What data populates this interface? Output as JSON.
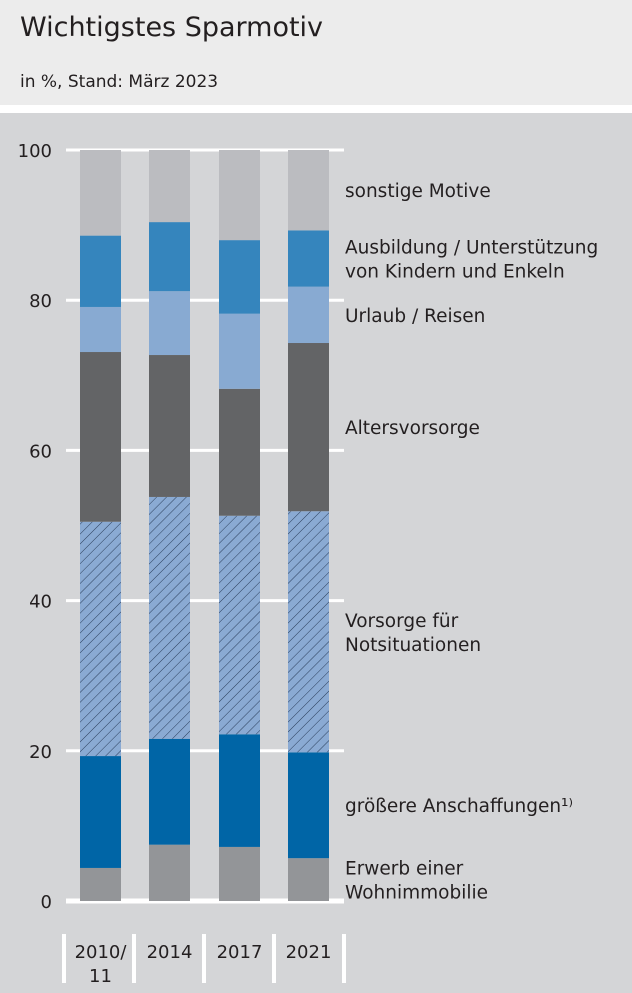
{
  "header": {
    "title": "Wichtigstes Sparmotiv",
    "subtitle": "in %, Stand: März 2023"
  },
  "chart_data": {
    "type": "bar",
    "stacked": true,
    "categories": [
      [
        "2010/",
        "11"
      ],
      [
        "2014"
      ],
      [
        "2017"
      ],
      [
        "2021"
      ]
    ],
    "ylim": [
      0,
      100
    ],
    "yticks": [
      0,
      20,
      40,
      60,
      80,
      100
    ],
    "grid": true,
    "legend": "right, labels beside last bar",
    "series": [
      {
        "name": [
          "Erwerb einer",
          "Wohnimmobilie"
        ],
        "color": "#939598",
        "values": [
          4.4,
          7.5,
          7.2,
          5.7
        ]
      },
      {
        "name": [
          "größere Anschaffungen¹⁾"
        ],
        "color": "#0065a6",
        "values": [
          14.9,
          14.1,
          15.0,
          14.1
        ]
      },
      {
        "name": [
          "Vorsorge für",
          "Notsituationen"
        ],
        "color": "#8aaad3",
        "hatched": true,
        "values": [
          31.2,
          32.2,
          29.1,
          32.1
        ]
      },
      {
        "name": [
          "Altersvorsorge"
        ],
        "color": "#636466",
        "values": [
          22.6,
          18.9,
          16.9,
          22.4
        ]
      },
      {
        "name": [
          "Urlaub / Reisen"
        ],
        "color": "#88aad2",
        "values": [
          6.0,
          8.5,
          10.0,
          7.5
        ]
      },
      {
        "name": [
          "Ausbildung / Unterstützung",
          "von Kindern und Enkeln"
        ],
        "color": "#3585bd",
        "values": [
          9.5,
          9.2,
          9.8,
          7.5
        ]
      },
      {
        "name": [
          "sonstige Motive"
        ],
        "color": "#bbbcc0",
        "values": [
          11.4,
          9.6,
          12.0,
          10.7
        ]
      }
    ]
  }
}
